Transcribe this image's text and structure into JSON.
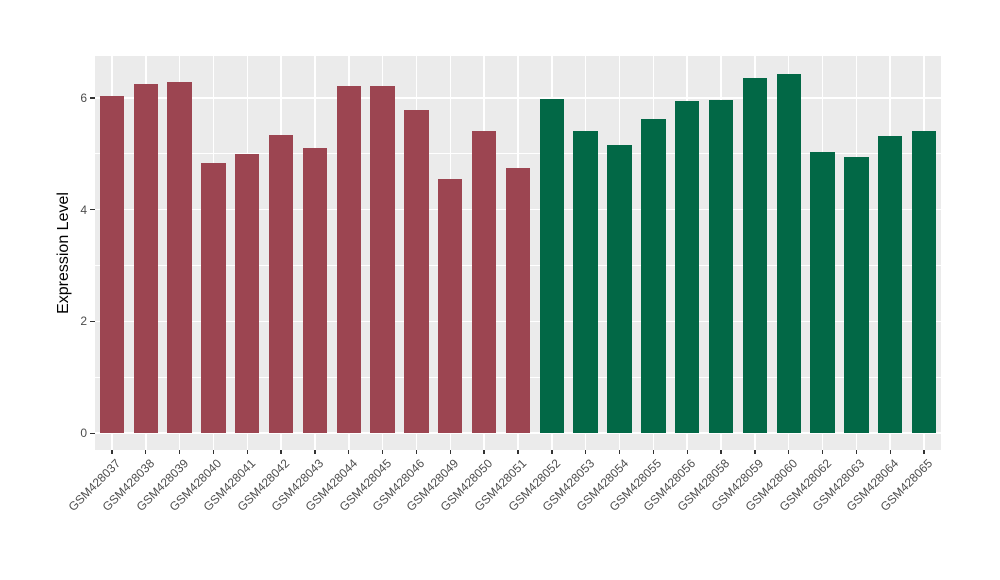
{
  "chart_data": {
    "type": "bar",
    "title": "",
    "xlabel": "",
    "ylabel": "Expression Level",
    "ylim": [
      -0.3,
      6.75
    ],
    "grid": true,
    "legend": "none",
    "yticks": [
      {
        "label": "0",
        "value": 0
      },
      {
        "label": "2",
        "value": 2
      },
      {
        "label": "4",
        "value": 4
      },
      {
        "label": "6",
        "value": 6
      }
    ],
    "yticks_minor": [
      1,
      3,
      5
    ],
    "categories": [
      "GSM428037",
      "GSM428038",
      "GSM428039",
      "GSM428040",
      "GSM428041",
      "GSM428042",
      "GSM428043",
      "GSM428044",
      "GSM428045",
      "GSM428046",
      "GSM428049",
      "GSM428050",
      "GSM428051",
      "GSM428052",
      "GSM428053",
      "GSM428054",
      "GSM428055",
      "GSM428056",
      "GSM428058",
      "GSM428059",
      "GSM428060",
      "GSM428062",
      "GSM428063",
      "GSM428064",
      "GSM428065"
    ],
    "values": [
      6.04,
      6.25,
      6.28,
      4.83,
      5.0,
      5.33,
      5.1,
      6.22,
      6.22,
      5.79,
      4.55,
      5.4,
      4.75,
      5.98,
      5.4,
      5.16,
      5.63,
      5.95,
      5.97,
      6.36,
      6.42,
      5.03,
      4.95,
      5.31,
      5.4
    ],
    "bar_colors": [
      "#9C4551",
      "#9C4551",
      "#9C4551",
      "#9C4551",
      "#9C4551",
      "#9C4551",
      "#9C4551",
      "#9C4551",
      "#9C4551",
      "#9C4551",
      "#9C4551",
      "#9C4551",
      "#9C4551",
      "#026846",
      "#026846",
      "#026846",
      "#026846",
      "#026846",
      "#026846",
      "#026846",
      "#026846",
      "#026846",
      "#026846",
      "#026846",
      "#026846"
    ],
    "colors": {
      "group_red": "#9C4551",
      "group_green": "#026846",
      "panel_background": "#EBEBEB",
      "gridline": "#FFFFFF",
      "axis_text": "#4D4D4D",
      "axis_title": "#000000"
    }
  }
}
